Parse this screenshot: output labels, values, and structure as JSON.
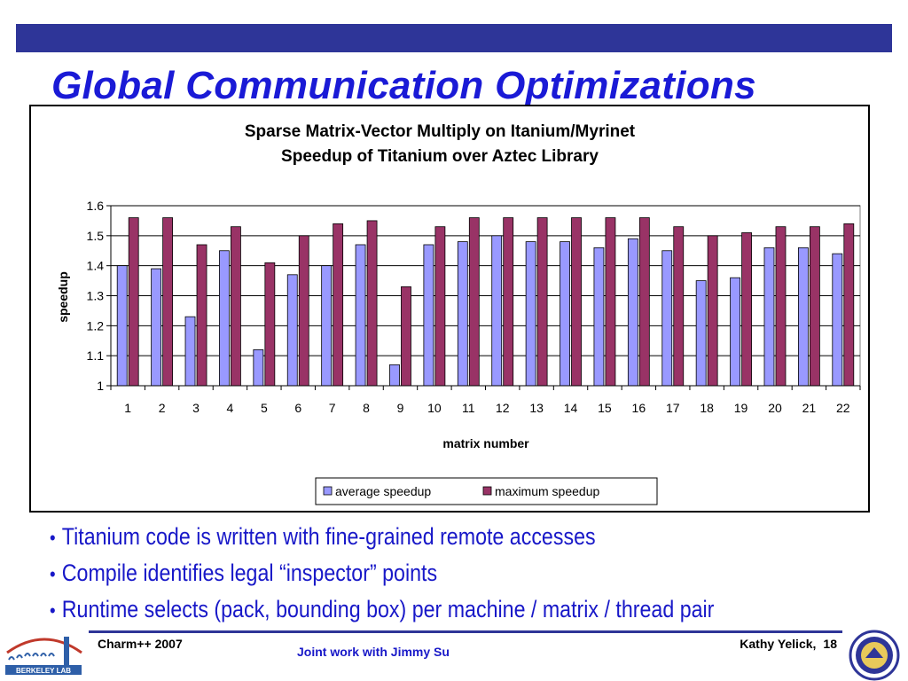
{
  "slide": {
    "title": "Global Communication Optimizations",
    "bullets": [
      "Titanium code is written with fine-grained remote accesses",
      "Compile identifies legal “inspector” points",
      "Runtime selects (pack, bounding box) per machine / matrix / thread pair"
    ],
    "footer_left": "Charm++ 2007",
    "footer_center": "Joint work with Jimmy Su",
    "footer_right_author": "Kathy Yelick,",
    "footer_right_page": "18",
    "lab_logo_text": "BERKELEY LAB",
    "colors": {
      "bar_band": "#2e3598",
      "title": "#1a1ad6",
      "bullet_text": "#1818c8"
    }
  },
  "chart_data": {
    "type": "bar",
    "title_line1": "Sparse Matrix-Vector Multiply on Itanium/Myrinet",
    "title_line2": "Speedup of Titanium over Aztec Library",
    "xlabel": "matrix number",
    "ylabel": "speedup",
    "ylim": [
      1,
      1.6
    ],
    "yticks": [
      "1",
      "1.1",
      "1.2",
      "1.3",
      "1.4",
      "1.5",
      "1.6"
    ],
    "grid": true,
    "legend_position": "bottom",
    "categories": [
      "1",
      "2",
      "3",
      "4",
      "5",
      "6",
      "7",
      "8",
      "9",
      "10",
      "11",
      "12",
      "13",
      "14",
      "15",
      "16",
      "17",
      "18",
      "19",
      "20",
      "21",
      "22"
    ],
    "series": [
      {
        "name": "average speedup",
        "color": "#9999ff",
        "values": [
          1.4,
          1.39,
          1.23,
          1.45,
          1.12,
          1.37,
          1.4,
          1.47,
          1.07,
          1.47,
          1.48,
          1.5,
          1.48,
          1.48,
          1.46,
          1.49,
          1.45,
          1.35,
          1.36,
          1.46,
          1.46,
          1.44
        ]
      },
      {
        "name": "maximum speedup",
        "color": "#993366",
        "values": [
          1.56,
          1.56,
          1.47,
          1.53,
          1.41,
          1.5,
          1.54,
          1.55,
          1.33,
          1.53,
          1.56,
          1.56,
          1.56,
          1.56,
          1.56,
          1.56,
          1.53,
          1.5,
          1.51,
          1.53,
          1.53,
          1.54
        ]
      }
    ]
  }
}
